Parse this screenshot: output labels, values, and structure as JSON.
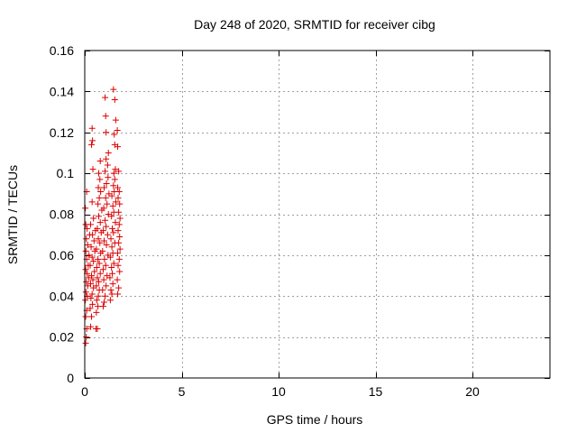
{
  "chart_data": {
    "type": "scatter",
    "title": "Day 248 of 2020, SRMTID for receiver cibg",
    "xlabel": "GPS time / hours",
    "ylabel": "SRMTID / TECUs",
    "xlim": [
      0,
      24
    ],
    "ylim": [
      0,
      0.16
    ],
    "xticks": [
      0,
      5,
      10,
      15,
      20
    ],
    "xtick_labels": [
      "0",
      "5",
      "10",
      "15",
      "20"
    ],
    "yticks": [
      0,
      0.02,
      0.04,
      0.06,
      0.08,
      0.1,
      0.12,
      0.14,
      0.16
    ],
    "ytick_labels": [
      "0",
      "0.02",
      "0.04",
      "0.06",
      "0.08",
      "0.1",
      "0.12",
      "0.14",
      "0.16"
    ],
    "grid": true,
    "marker": "+",
    "marker_color": "#dd0000",
    "series": [
      {
        "points": [
          [
            0.05,
            0.017
          ],
          [
            0.08,
            0.02
          ],
          [
            0.1,
            0.024
          ],
          [
            0.05,
            0.03
          ],
          [
            0.1,
            0.033
          ],
          [
            0.03,
            0.038
          ],
          [
            0.12,
            0.04
          ],
          [
            0.06,
            0.042
          ],
          [
            0.15,
            0.045
          ],
          [
            0.08,
            0.047
          ],
          [
            0.2,
            0.049
          ],
          [
            0.12,
            0.051
          ],
          [
            0.05,
            0.053
          ],
          [
            0.18,
            0.055
          ],
          [
            0.1,
            0.058
          ],
          [
            0.22,
            0.06
          ],
          [
            0.06,
            0.062
          ],
          [
            0.15,
            0.065
          ],
          [
            0.08,
            0.068
          ],
          [
            0.25,
            0.07
          ],
          [
            0.12,
            0.073
          ],
          [
            0.05,
            0.075
          ],
          [
            0.03,
            0.083
          ],
          [
            0.1,
            0.091
          ],
          [
            0.3,
            0.025
          ],
          [
            0.35,
            0.03
          ],
          [
            0.28,
            0.034
          ],
          [
            0.4,
            0.036
          ],
          [
            0.32,
            0.039
          ],
          [
            0.38,
            0.041
          ],
          [
            0.45,
            0.044
          ],
          [
            0.3,
            0.046
          ],
          [
            0.42,
            0.048
          ],
          [
            0.35,
            0.05
          ],
          [
            0.5,
            0.052
          ],
          [
            0.28,
            0.055
          ],
          [
            0.45,
            0.057
          ],
          [
            0.38,
            0.059
          ],
          [
            0.52,
            0.062
          ],
          [
            0.33,
            0.064
          ],
          [
            0.48,
            0.067
          ],
          [
            0.4,
            0.07
          ],
          [
            0.55,
            0.072
          ],
          [
            0.3,
            0.075
          ],
          [
            0.45,
            0.078
          ],
          [
            0.38,
            0.086
          ],
          [
            0.42,
            0.102
          ],
          [
            0.35,
            0.114
          ],
          [
            0.4,
            0.116
          ],
          [
            0.38,
            0.122
          ],
          [
            0.58,
            0.024
          ],
          [
            0.65,
            0.024
          ],
          [
            0.6,
            0.032
          ],
          [
            0.68,
            0.035
          ],
          [
            0.62,
            0.038
          ],
          [
            0.7,
            0.04
          ],
          [
            0.75,
            0.043
          ],
          [
            0.6,
            0.045
          ],
          [
            0.72,
            0.047
          ],
          [
            0.65,
            0.049
          ],
          [
            0.8,
            0.051
          ],
          [
            0.62,
            0.054
          ],
          [
            0.75,
            0.056
          ],
          [
            0.68,
            0.058
          ],
          [
            0.82,
            0.061
          ],
          [
            0.6,
            0.063
          ],
          [
            0.78,
            0.066
          ],
          [
            0.7,
            0.068
          ],
          [
            0.85,
            0.071
          ],
          [
            0.65,
            0.073
          ],
          [
            0.8,
            0.076
          ],
          [
            0.72,
            0.079
          ],
          [
            0.88,
            0.082
          ],
          [
            0.68,
            0.085
          ],
          [
            0.75,
            0.088
          ],
          [
            0.82,
            0.091
          ],
          [
            0.7,
            0.093
          ],
          [
            0.78,
            0.097
          ],
          [
            0.72,
            0.1
          ],
          [
            0.8,
            0.106
          ],
          [
            0.95,
            0.035
          ],
          [
            1.0,
            0.037
          ],
          [
            1.05,
            0.04
          ],
          [
            0.92,
            0.043
          ],
          [
            1.1,
            0.045
          ],
          [
            0.98,
            0.048
          ],
          [
            1.15,
            0.05
          ],
          [
            0.95,
            0.053
          ],
          [
            1.08,
            0.055
          ],
          [
            1.02,
            0.058
          ],
          [
            1.2,
            0.06
          ],
          [
            0.92,
            0.062
          ],
          [
            1.12,
            0.065
          ],
          [
            1.0,
            0.067
          ],
          [
            1.18,
            0.07
          ],
          [
            0.95,
            0.072
          ],
          [
            1.1,
            0.074
          ],
          [
            1.05,
            0.077
          ],
          [
            1.22,
            0.08
          ],
          [
            0.98,
            0.083
          ],
          [
            1.15,
            0.085
          ],
          [
            1.08,
            0.088
          ],
          [
            1.25,
            0.09
          ],
          [
            1.0,
            0.093
          ],
          [
            1.12,
            0.095
          ],
          [
            1.2,
            0.098
          ],
          [
            1.05,
            0.101
          ],
          [
            1.18,
            0.104
          ],
          [
            1.1,
            0.107
          ],
          [
            1.22,
            0.11
          ],
          [
            1.1,
            0.12
          ],
          [
            1.08,
            0.128
          ],
          [
            1.05,
            0.137
          ],
          [
            1.32,
            0.038
          ],
          [
            1.4,
            0.041
          ],
          [
            1.35,
            0.043
          ],
          [
            1.45,
            0.046
          ],
          [
            1.3,
            0.049
          ],
          [
            1.42,
            0.051
          ],
          [
            1.38,
            0.054
          ],
          [
            1.5,
            0.056
          ],
          [
            1.32,
            0.059
          ],
          [
            1.45,
            0.061
          ],
          [
            1.4,
            0.064
          ],
          [
            1.55,
            0.066
          ],
          [
            1.35,
            0.068
          ],
          [
            1.48,
            0.071
          ],
          [
            1.42,
            0.073
          ],
          [
            1.58,
            0.076
          ],
          [
            1.38,
            0.079
          ],
          [
            1.5,
            0.081
          ],
          [
            1.45,
            0.084
          ],
          [
            1.6,
            0.086
          ],
          [
            1.4,
            0.089
          ],
          [
            1.52,
            0.091
          ],
          [
            1.48,
            0.094
          ],
          [
            1.55,
            0.097
          ],
          [
            1.5,
            0.1
          ],
          [
            1.58,
            0.102
          ],
          [
            1.55,
            0.114
          ],
          [
            1.52,
            0.119
          ],
          [
            1.6,
            0.126
          ],
          [
            1.55,
            0.136
          ],
          [
            1.48,
            0.141
          ],
          [
            1.7,
            0.041
          ],
          [
            1.75,
            0.044
          ],
          [
            1.68,
            0.048
          ],
          [
            1.8,
            0.052
          ],
          [
            1.72,
            0.055
          ],
          [
            1.78,
            0.058
          ],
          [
            1.7,
            0.061
          ],
          [
            1.82,
            0.063
          ],
          [
            1.75,
            0.066
          ],
          [
            1.8,
            0.069
          ],
          [
            1.72,
            0.072
          ],
          [
            1.78,
            0.075
          ],
          [
            1.82,
            0.078
          ],
          [
            1.75,
            0.081
          ],
          [
            1.8,
            0.085
          ],
          [
            1.72,
            0.088
          ],
          [
            1.78,
            0.091
          ],
          [
            1.7,
            0.093
          ],
          [
            1.75,
            0.101
          ],
          [
            1.7,
            0.113
          ],
          [
            1.68,
            0.121
          ]
        ]
      }
    ]
  }
}
